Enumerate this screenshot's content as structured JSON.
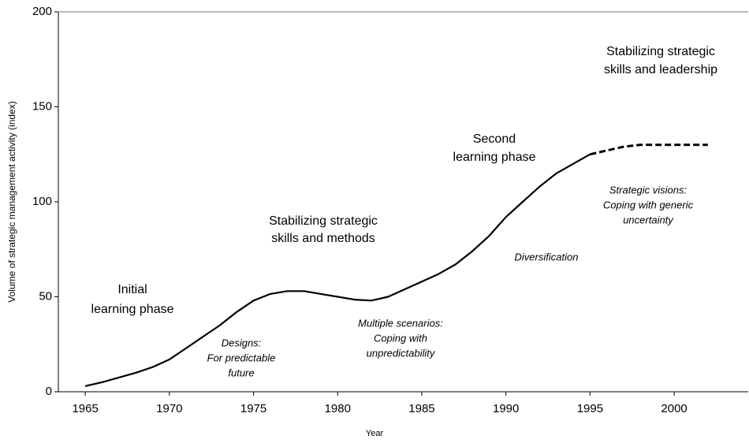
{
  "chart_data": {
    "type": "line",
    "xlabel": "Year",
    "ylabel": "Volume of strategic management activity (index)",
    "x": [
      1965,
      1966,
      1967,
      1968,
      1969,
      1970,
      1971,
      1972,
      1973,
      1974,
      1975,
      1976,
      1977,
      1978,
      1979,
      1980,
      1981,
      1982,
      1983,
      1984,
      1985,
      1986,
      1987,
      1988,
      1989,
      1990,
      1991,
      1992,
      1993,
      1994,
      1995,
      1996,
      1997,
      1998,
      1999,
      2000,
      2001,
      2002
    ],
    "series": [
      {
        "color": "#000000",
        "dashed": false,
        "values": [
          3,
          5,
          7.5,
          10,
          13,
          17,
          23,
          29,
          35,
          42,
          48,
          51.5,
          53,
          53,
          51.5,
          50,
          48.5,
          48,
          50,
          54,
          58,
          62,
          67,
          74,
          82,
          92,
          100,
          108,
          115,
          120,
          125,
          null,
          null,
          null,
          null,
          null,
          null,
          null
        ]
      },
      {
        "color": "#000000",
        "dashed": true,
        "values": [
          null,
          null,
          null,
          null,
          null,
          null,
          null,
          null,
          null,
          null,
          null,
          null,
          null,
          null,
          null,
          null,
          null,
          null,
          null,
          null,
          null,
          null,
          null,
          null,
          null,
          null,
          null,
          null,
          null,
          null,
          125,
          127,
          129,
          130,
          130,
          130,
          130,
          130
        ]
      }
    ],
    "xlim": [
      1963.4,
      2004.4
    ],
    "ylim": [
      0,
      200
    ],
    "xticks": [
      1965,
      1970,
      1975,
      1980,
      1985,
      1990,
      1995,
      2000
    ],
    "yticks": [
      0,
      50,
      100,
      150,
      200
    ],
    "annotations": [
      {
        "lines": [
          "Initial",
          "learning phase"
        ],
        "italic": false
      },
      {
        "lines": [
          "Stabilizing strategic",
          "skills and methods"
        ],
        "italic": false
      },
      {
        "lines": [
          "Second",
          "learning phase"
        ],
        "italic": false
      },
      {
        "lines": [
          "Stabilizing strategic",
          "skills and leadership"
        ],
        "italic": false
      },
      {
        "lines": [
          "Designs:",
          "For predictable",
          "future"
        ],
        "italic": true
      },
      {
        "lines": [
          "Multiple scenarios:",
          "Coping with",
          "unpredictability"
        ],
        "italic": true
      },
      {
        "lines": [
          "Diversification"
        ],
        "italic": true
      },
      {
        "lines": [
          "Strategic visions:",
          "Coping with generic",
          "uncertainty"
        ],
        "italic": true
      }
    ]
  }
}
